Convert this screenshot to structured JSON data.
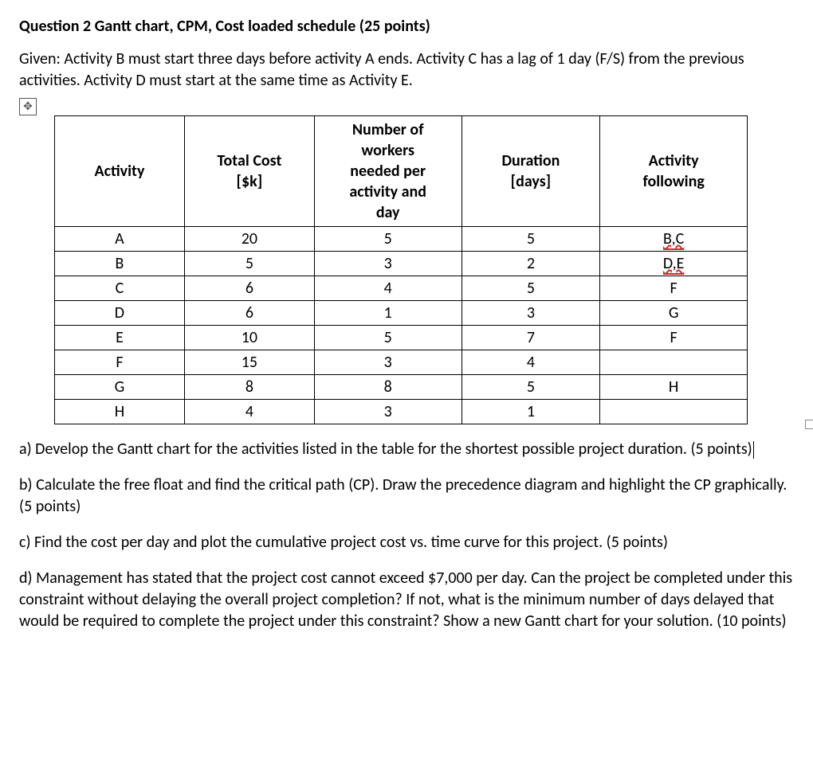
{
  "question": {
    "title": "Question 2   Gantt chart, CPM, Cost loaded schedule (25 points)",
    "given": "Given: Activity B must start three days before activity A ends. Activity C has a lag of 1 day (F/S) from the previous activities.  Activity D must start at the same time as Activity E."
  },
  "table": {
    "columns": {
      "activity": "Activity",
      "total_cost_l1": "Total Cost",
      "total_cost_l2": "[$k]",
      "workers_l1": "Number of",
      "workers_l2": "workers",
      "workers_l3": "needed per",
      "workers_l4": "activity and",
      "workers_l5": "day",
      "duration_l1": "Duration",
      "duration_l2": "[days]",
      "following_l1": "Activity",
      "following_l2": "following"
    },
    "rows": [
      {
        "activity": "A",
        "cost": "20",
        "workers": "5",
        "duration": "5",
        "following": "B,C",
        "squiggly": true
      },
      {
        "activity": "B",
        "cost": "5",
        "workers": "3",
        "duration": "2",
        "following": "D,E",
        "squiggly": true
      },
      {
        "activity": "C",
        "cost": "6",
        "workers": "4",
        "duration": "5",
        "following": "F",
        "squiggly": false
      },
      {
        "activity": "D",
        "cost": "6",
        "workers": "1",
        "duration": "3",
        "following": "G",
        "squiggly": false
      },
      {
        "activity": "E",
        "cost": "10",
        "workers": "5",
        "duration": "7",
        "following": "F",
        "squiggly": false
      },
      {
        "activity": "F",
        "cost": "15",
        "workers": "3",
        "duration": "4",
        "following": "",
        "squiggly": false
      },
      {
        "activity": "G",
        "cost": "8",
        "workers": "8",
        "duration": "5",
        "following": "H",
        "squiggly": false
      },
      {
        "activity": "H",
        "cost": "4",
        "workers": "3",
        "duration": "1",
        "following": "",
        "squiggly": false
      }
    ],
    "border_color": "#000000",
    "squiggly_color": "#d12a2a",
    "background": "#ffffff",
    "font_size_pt": 15
  },
  "parts": {
    "a": "a) Develop the Gantt chart for the activities listed in the table for the shortest possible project duration. (5 points)",
    "b": "b) Calculate the free float and find the critical path (CP). Draw the precedence diagram and highlight the CP graphically. (5 points)",
    "c": "c) Find the cost per day and plot the cumulative project cost vs. time curve for this project. (5 points)",
    "d": "d) Management has stated that the project cost cannot exceed $7,000 per day. Can the project be completed under this constraint without delaying the overall project completion? If not, what is the minimum number of days delayed that would be required to complete the project under this constraint? Show a new Gantt chart for your solution. (10 points)"
  },
  "icons": {
    "move_glyph": "✥"
  }
}
